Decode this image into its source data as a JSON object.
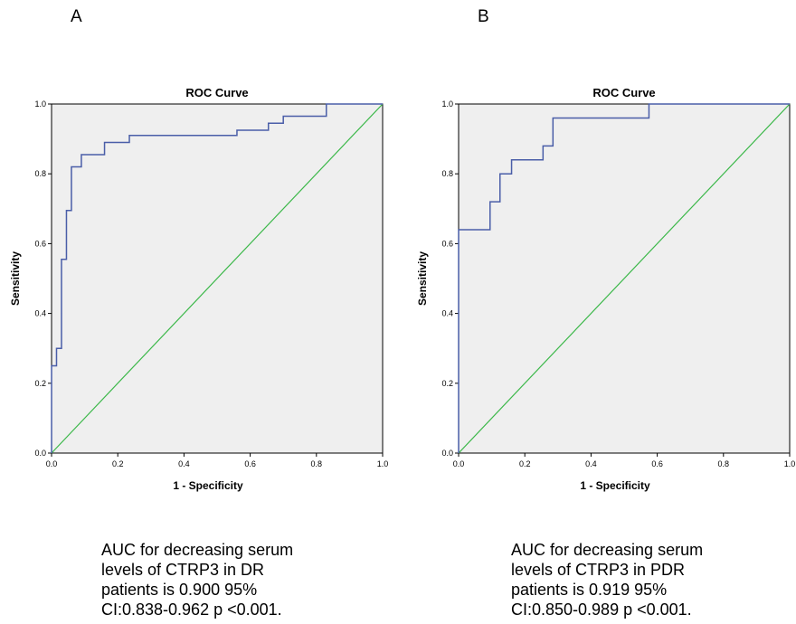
{
  "panels": [
    {
      "letter": "A",
      "caption": [
        "AUC for decreasing serum",
        "levels of CTRP3 in DR",
        "patients is  0.900 95%",
        "CI:0.838-0.962  p <0.001."
      ]
    },
    {
      "letter": "B",
      "caption": [
        "AUC for decreasing serum",
        "levels of CTRP3 in PDR",
        "patients is  0.919 95%",
        "CI:0.850-0.989  p <0.001."
      ]
    }
  ],
  "colors": {
    "roc": "#4a5ea8",
    "reference": "#3cb84a",
    "plot_bg": "#efefef"
  },
  "chart_data": [
    {
      "type": "line",
      "title": "ROC Curve",
      "xlabel": "1 - Specificity",
      "ylabel": "Sensitivity",
      "xlim": [
        0,
        1
      ],
      "ylim": [
        0,
        1
      ],
      "xticks": [
        "0.0",
        "0.2",
        "0.4",
        "0.6",
        "0.8",
        "1.0"
      ],
      "yticks": [
        "0.0",
        "0.2",
        "0.4",
        "0.6",
        "0.8",
        "1.0"
      ],
      "series": [
        {
          "x": [
            0,
            0,
            0.015,
            0.015,
            0.03,
            0.03,
            0.045,
            0.045,
            0.06,
            0.06,
            0.09,
            0.09,
            0.16,
            0.16,
            0.235,
            0.235,
            0.56,
            0.56,
            0.655,
            0.655,
            0.7,
            0.7,
            0.83,
            0.83,
            1.0
          ],
          "y": [
            0,
            0.25,
            0.25,
            0.3,
            0.3,
            0.555,
            0.555,
            0.695,
            0.695,
            0.82,
            0.82,
            0.855,
            0.855,
            0.89,
            0.89,
            0.91,
            0.91,
            0.925,
            0.925,
            0.945,
            0.945,
            0.965,
            0.965,
            1.0,
            1.0
          ]
        },
        {
          "x": [
            0,
            1
          ],
          "y": [
            0,
            1
          ]
        }
      ]
    },
    {
      "type": "line",
      "title": "ROC Curve",
      "xlabel": "1 - Specificity",
      "ylabel": "Sensitivity",
      "xlim": [
        0,
        1
      ],
      "ylim": [
        0,
        1
      ],
      "xticks": [
        "0.0",
        "0.2",
        "0.4",
        "0.6",
        "0.8",
        "1.0"
      ],
      "yticks": [
        "0.0",
        "0.2",
        "0.4",
        "0.6",
        "0.8",
        "1.0"
      ],
      "series": [
        {
          "x": [
            0,
            0,
            0.095,
            0.095,
            0.125,
            0.125,
            0.16,
            0.16,
            0.255,
            0.255,
            0.285,
            0.285,
            0.575,
            0.575,
            1.0
          ],
          "y": [
            0,
            0.64,
            0.64,
            0.72,
            0.72,
            0.8,
            0.8,
            0.84,
            0.84,
            0.88,
            0.88,
            0.96,
            0.96,
            1.0,
            1.0
          ]
        },
        {
          "x": [
            0,
            1
          ],
          "y": [
            0,
            1
          ]
        }
      ]
    }
  ]
}
